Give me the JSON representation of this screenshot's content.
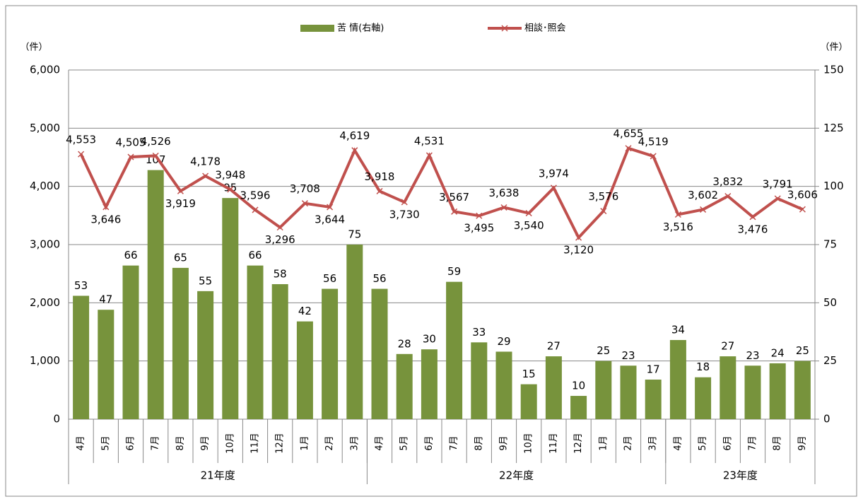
{
  "chart_data": {
    "type": "bar-line",
    "y_unit_label": "（件）",
    "y2_unit_label": "（件）",
    "groups": [
      {
        "name": "21年度",
        "categories": [
          "4月",
          "5月",
          "6月",
          "7月",
          "8月",
          "9月",
          "10月",
          "11月",
          "12月",
          "1月",
          "2月",
          "3月"
        ]
      },
      {
        "name": "22年度",
        "categories": [
          "4月",
          "5月",
          "6月",
          "7月",
          "8月",
          "9月",
          "10月",
          "11月",
          "12月",
          "1月",
          "2月",
          "3月"
        ]
      },
      {
        "name": "23年度",
        "categories": [
          "4月",
          "5月",
          "6月",
          "7月",
          "8月",
          "9月"
        ]
      }
    ],
    "series": [
      {
        "name": "苦 情(右軸)",
        "type": "bar",
        "axis": "y2",
        "color": "#77933c",
        "values": [
          53,
          47,
          66,
          107,
          65,
          55,
          95,
          66,
          58,
          42,
          56,
          75,
          56,
          28,
          30,
          59,
          33,
          29,
          15,
          27,
          10,
          25,
          23,
          17,
          34,
          18,
          27,
          23,
          24,
          25
        ]
      },
      {
        "name": "相談･照会",
        "type": "line",
        "axis": "y",
        "color": "#c0504d",
        "values": [
          4553,
          3646,
          4505,
          4526,
          3919,
          4178,
          3948,
          3596,
          3296,
          3708,
          3644,
          4619,
          3918,
          3730,
          4531,
          3567,
          3495,
          3638,
          3540,
          3974,
          3120,
          3576,
          4655,
          4519,
          3516,
          3602,
          3832,
          3476,
          3791,
          3606
        ],
        "value_labels": [
          "4,553",
          "3,646",
          "4,505",
          "4,526",
          "3,919",
          "4,178",
          "3,948",
          "3,596",
          "3,296",
          "3,708",
          "3,644",
          "4,619",
          "3,918",
          "3,730",
          "4,531",
          "3,567",
          "3,495",
          "3,638",
          "3,540",
          "3,974",
          "3,120",
          "3,576",
          "4,655",
          "4,519",
          "3,516",
          "3,602",
          "3,832",
          "3,476",
          "3,791",
          "3,606"
        ]
      }
    ],
    "ylim": [
      0,
      6000
    ],
    "yticks": [
      0,
      {
        "value": 1000,
        "label": "1,000"
      },
      {
        "value": 2000,
        "label": "2,000"
      },
      {
        "value": 3000,
        "label": "3,000"
      },
      {
        "value": 4000,
        "label": "4,000"
      },
      {
        "value": 5000,
        "label": "5,000"
      },
      {
        "value": 6000,
        "label": "6,000"
      }
    ],
    "y2lim": [
      0,
      150
    ],
    "y2ticks": [
      0,
      25,
      50,
      75,
      100,
      125,
      150
    ],
    "grid": true
  }
}
